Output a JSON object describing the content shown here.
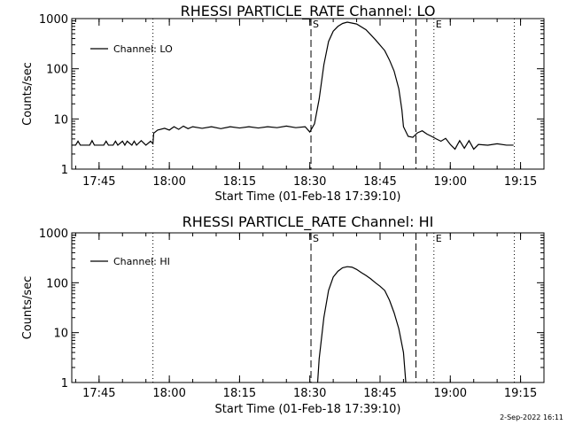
{
  "footer": {
    "timestamp": "2-Sep-2022 16:11"
  },
  "chart_data": [
    {
      "type": "line",
      "title": "RHESSI PARTICLE_RATE Channel: LO",
      "xlabel": "Start Time (01-Feb-18 17:39:10)",
      "ylabel": "Counts/sec",
      "yscale": "log",
      "ylim": [
        1,
        1000
      ],
      "xlim": [
        "17:39:10",
        "19:20:00"
      ],
      "xticks": [
        "17:45",
        "18:00",
        "18:15",
        "18:30",
        "18:45",
        "19:00",
        "19:15"
      ],
      "yticks": [
        "1",
        "10",
        "100",
        "1000"
      ],
      "grid": false,
      "legend_position": "top-left",
      "dotted_lines": [
        "17:56:30",
        "19:13:40"
      ],
      "dashed_lines": [
        "18:30:15",
        "18:52:40"
      ],
      "event_markers": [
        {
          "label": "S",
          "time": "18:30:15"
        },
        {
          "label": "E",
          "time": "18:56:30"
        }
      ],
      "series": [
        {
          "name": "Channel: LO",
          "points": [
            [
              "17:39:10",
              3.0
            ],
            [
              "17:40:00",
              3.0
            ],
            [
              "17:40:30",
              3.6
            ],
            [
              "17:41:00",
              3.0
            ],
            [
              "17:42:00",
              3.0
            ],
            [
              "17:43:00",
              3.0
            ],
            [
              "17:43:30",
              3.7
            ],
            [
              "17:44:00",
              3.0
            ],
            [
              "17:46:00",
              3.0
            ],
            [
              "17:46:30",
              3.6
            ],
            [
              "17:47:00",
              3.0
            ],
            [
              "17:48:00",
              3.0
            ],
            [
              "17:48:30",
              3.6
            ],
            [
              "17:49:00",
              3.0
            ],
            [
              "17:50:00",
              3.6
            ],
            [
              "17:50:30",
              3.0
            ],
            [
              "17:51:00",
              3.6
            ],
            [
              "17:52:00",
              3.0
            ],
            [
              "17:52:30",
              3.6
            ],
            [
              "17:53:00",
              3.0
            ],
            [
              "17:54:00",
              3.7
            ],
            [
              "17:55:00",
              3.0
            ],
            [
              "17:56:00",
              3.6
            ],
            [
              "17:56:30",
              3.2
            ],
            [
              "17:56:40",
              5.2
            ],
            [
              "17:57:30",
              6.0
            ],
            [
              "17:59:00",
              6.5
            ],
            [
              "18:00:00",
              6.0
            ],
            [
              "18:01:00",
              7.0
            ],
            [
              "18:02:00",
              6.2
            ],
            [
              "18:03:00",
              7.2
            ],
            [
              "18:04:00",
              6.4
            ],
            [
              "18:05:00",
              7.0
            ],
            [
              "18:07:00",
              6.5
            ],
            [
              "18:09:00",
              7.0
            ],
            [
              "18:11:00",
              6.4
            ],
            [
              "18:13:00",
              7.0
            ],
            [
              "18:15:00",
              6.6
            ],
            [
              "18:17:00",
              7.0
            ],
            [
              "18:19:00",
              6.6
            ],
            [
              "18:21:00",
              7.0
            ],
            [
              "18:23:00",
              6.7
            ],
            [
              "18:25:00",
              7.2
            ],
            [
              "18:27:00",
              6.7
            ],
            [
              "18:29:00",
              7.0
            ],
            [
              "18:30:00",
              5.5
            ],
            [
              "18:31:00",
              8.0
            ],
            [
              "18:32:00",
              25
            ],
            [
              "18:33:00",
              120
            ],
            [
              "18:34:00",
              350
            ],
            [
              "18:35:00",
              560
            ],
            [
              "18:36:00",
              700
            ],
            [
              "18:37:00",
              800
            ],
            [
              "18:38:00",
              850
            ],
            [
              "18:40:00",
              780
            ],
            [
              "18:42:00",
              600
            ],
            [
              "18:44:00",
              380
            ],
            [
              "18:46:00",
              230
            ],
            [
              "18:47:00",
              150
            ],
            [
              "18:48:00",
              90
            ],
            [
              "18:49:00",
              40
            ],
            [
              "18:49:40",
              15
            ],
            [
              "18:50:00",
              7
            ],
            [
              "18:51:00",
              4.5
            ],
            [
              "18:52:00",
              4.3
            ],
            [
              "18:53:00",
              5.3
            ],
            [
              "18:54:00",
              5.8
            ],
            [
              "18:55:00",
              5.0
            ],
            [
              "18:56:00",
              4.5
            ],
            [
              "18:57:00",
              4.0
            ],
            [
              "18:58:00",
              3.6
            ],
            [
              "18:59:00",
              4.1
            ],
            [
              "19:00:00",
              3.1
            ],
            [
              "19:01:00",
              2.5
            ],
            [
              "19:02:00",
              3.7
            ],
            [
              "19:03:00",
              2.6
            ],
            [
              "19:04:00",
              3.7
            ],
            [
              "19:05:00",
              2.5
            ],
            [
              "19:06:00",
              3.1
            ],
            [
              "19:08:00",
              3.0
            ],
            [
              "19:10:00",
              3.2
            ],
            [
              "19:12:00",
              3.0
            ],
            [
              "19:13:30",
              3.0
            ]
          ]
        }
      ]
    },
    {
      "type": "line",
      "title": "RHESSI PARTICLE_RATE Channel: HI",
      "xlabel": "Start Time (01-Feb-18 17:39:10)",
      "ylabel": "Counts/sec",
      "yscale": "log",
      "ylim": [
        1,
        1000
      ],
      "xlim": [
        "17:39:10",
        "19:20:00"
      ],
      "xticks": [
        "17:45",
        "18:00",
        "18:15",
        "18:30",
        "18:45",
        "19:00",
        "19:15"
      ],
      "yticks": [
        "1",
        "10",
        "100",
        "1000"
      ],
      "grid": false,
      "legend_position": "top-left",
      "dotted_lines": [
        "17:56:30",
        "19:13:40"
      ],
      "dashed_lines": [
        "18:30:15",
        "18:52:40"
      ],
      "event_markers": [
        {
          "label": "S",
          "time": "18:30:15"
        },
        {
          "label": "E",
          "time": "18:56:30"
        }
      ],
      "series": [
        {
          "name": "Channel: HI",
          "points": [
            [
              "18:31:40",
              1.0
            ],
            [
              "18:32:00",
              3.0
            ],
            [
              "18:33:00",
              20
            ],
            [
              "18:34:00",
              70
            ],
            [
              "18:35:00",
              130
            ],
            [
              "18:36:00",
              170
            ],
            [
              "18:37:00",
              200
            ],
            [
              "18:38:00",
              210
            ],
            [
              "18:39:00",
              205
            ],
            [
              "18:40:00",
              185
            ],
            [
              "18:41:00",
              160
            ],
            [
              "18:42:00",
              140
            ],
            [
              "18:43:00",
              120
            ],
            [
              "18:44:00",
              100
            ],
            [
              "18:45:00",
              85
            ],
            [
              "18:46:00",
              70
            ],
            [
              "18:47:00",
              45
            ],
            [
              "18:48:00",
              25
            ],
            [
              "18:49:00",
              12
            ],
            [
              "18:50:00",
              4
            ],
            [
              "18:50:30",
              1.0
            ]
          ]
        }
      ]
    }
  ]
}
